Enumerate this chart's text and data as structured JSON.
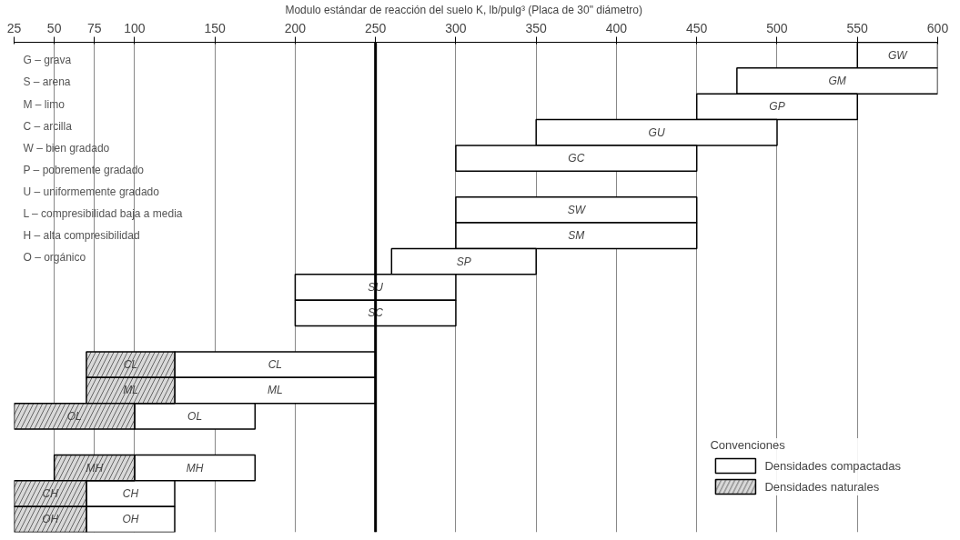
{
  "chart_data": {
    "type": "bar",
    "orientation": "horizontal",
    "xlabel": "Modulo estándar de reacción del suelo     K, lb/pulg³     (Placa de 30\" diámetro)",
    "categories": [
      "GW",
      "GM",
      "GP",
      "GU",
      "GC",
      null,
      "SW",
      "SM",
      "SP",
      "SU",
      "SC",
      null,
      "CL",
      "ML",
      "OL",
      null,
      "MH",
      "CH",
      "OH"
    ],
    "series": [
      {
        "name": "Densidades compactadas",
        "color": "#ffffff",
        "base": [
          550,
          475,
          450,
          350,
          300,
          null,
          300,
          300,
          260,
          200,
          200,
          null,
          125,
          125,
          100,
          null,
          100,
          70,
          70
        ],
        "values": [
          50,
          125,
          100,
          150,
          150,
          null,
          150,
          150,
          90,
          100,
          100,
          null,
          125,
          125,
          75,
          null,
          75,
          55,
          55
        ]
      },
      {
        "name": "Densidades naturales",
        "color": "#d9d9d9",
        "base": [
          null,
          null,
          null,
          null,
          null,
          null,
          null,
          null,
          null,
          null,
          null,
          null,
          70,
          70,
          25,
          null,
          50,
          25,
          25
        ],
        "values": [
          null,
          null,
          null,
          null,
          null,
          null,
          null,
          null,
          null,
          null,
          null,
          null,
          55,
          55,
          75,
          null,
          50,
          45,
          45
        ]
      }
    ],
    "xlim": [
      25,
      600
    ],
    "xticks": [
      25,
      50,
      75,
      100,
      150,
      200,
      250,
      300,
      350,
      400,
      450,
      500,
      550,
      600
    ],
    "grid": "x",
    "tick_labels": "x",
    "legend": "bottom right",
    "legend_title": "Convenciones",
    "ref_lines": [
      {
        "axis": "x",
        "value": 250,
        "color": "#000000"
      }
    ],
    "annotations": [
      "G – grava",
      "S – arena",
      "M – limo",
      "C – arcilla",
      "W – bien gradado",
      "P – pobremente gradado",
      "U – uniformemente gradado",
      "L – compresibilidad baja a media",
      "H – alta compresibilidad",
      "O – orgánico"
    ]
  }
}
